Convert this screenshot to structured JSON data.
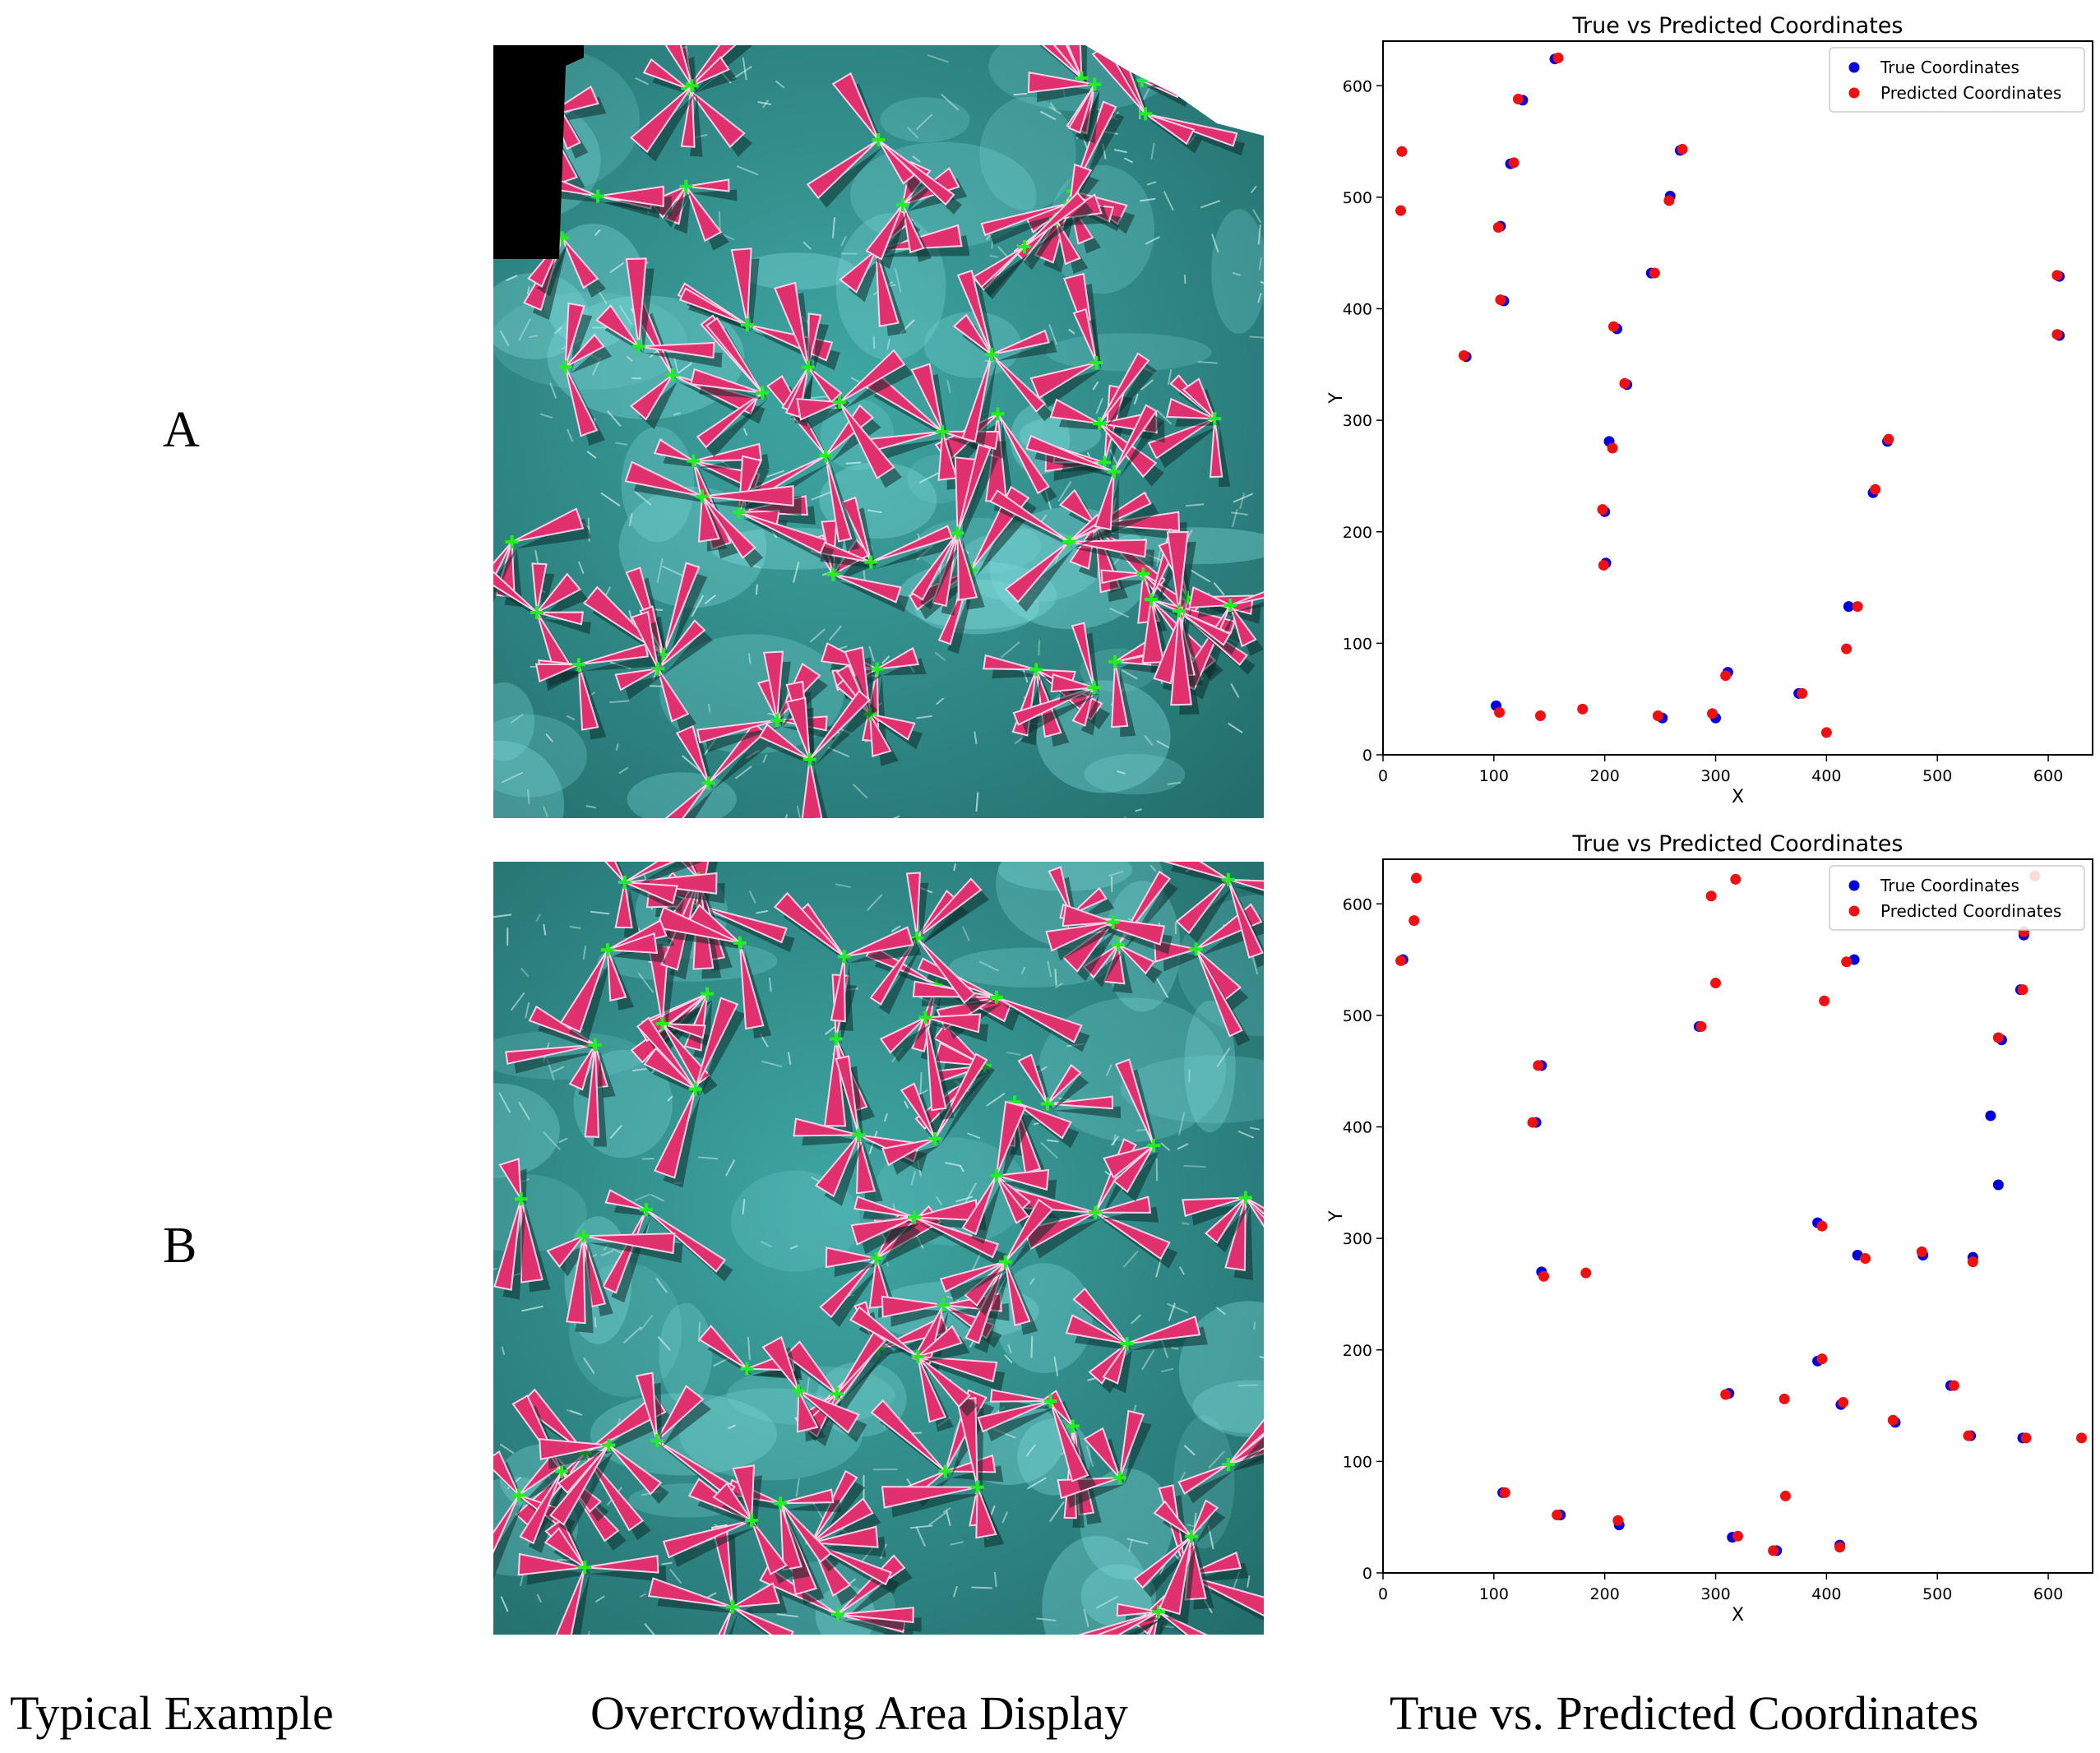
{
  "row_labels": [
    "A",
    "B"
  ],
  "captions": {
    "left": "Typical Example",
    "middle": "Overcrowding Area Display",
    "right": "True vs. Predicted Coordinates"
  },
  "colors": {
    "true": "#0000dd",
    "predicted": "#ee1111",
    "marker": "#22ee22",
    "plant_fill": "#e0306e",
    "plant_outline": "#ffd0e8",
    "soil": "#2f8f8d",
    "soil_light": "#7fdcdc",
    "mask": "#000000"
  },
  "chart_data": [
    {
      "type": "scatter",
      "title": "True vs Predicted Coordinates",
      "xlabel": "X",
      "ylabel": "Y",
      "xlim": [
        0,
        640
      ],
      "ylim": [
        0,
        640
      ],
      "xticks": [
        0,
        100,
        200,
        300,
        400,
        500,
        600
      ],
      "yticks": [
        0,
        100,
        200,
        300,
        400,
        500,
        600
      ],
      "legend": "top-right",
      "series": [
        {
          "name": "True Coordinates",
          "points": [
            [
              155,
              624
            ],
            [
              126,
              587
            ],
            [
              115,
              530
            ],
            [
              106,
              474
            ],
            [
              109,
              407
            ],
            [
              75,
              357
            ],
            [
              211,
              382
            ],
            [
              220,
              332
            ],
            [
              204,
              281
            ],
            [
              200,
              218
            ],
            [
              201,
              172
            ],
            [
              242,
              432
            ],
            [
              259,
              501
            ],
            [
              268,
              542
            ],
            [
              610,
              429
            ],
            [
              610,
              376
            ],
            [
              455,
              281
            ],
            [
              442,
              235
            ],
            [
              420,
              133
            ],
            [
              311,
              74
            ],
            [
              375,
              55
            ],
            [
              102,
              44
            ],
            [
              252,
              33
            ],
            [
              300,
              33
            ]
          ]
        },
        {
          "name": "Predicted Coordinates",
          "points": [
            [
              158,
              625
            ],
            [
              122,
              588
            ],
            [
              118,
              531
            ],
            [
              104,
              473
            ],
            [
              106,
              408
            ],
            [
              73,
              358
            ],
            [
              208,
              384
            ],
            [
              218,
              333
            ],
            [
              207,
              275
            ],
            [
              198,
              220
            ],
            [
              199,
              170
            ],
            [
              245,
              432
            ],
            [
              258,
              497
            ],
            [
              270,
              543
            ],
            [
              608,
              430
            ],
            [
              608,
              377
            ],
            [
              456,
              283
            ],
            [
              444,
              238
            ],
            [
              428,
              133
            ],
            [
              418,
              95
            ],
            [
              309,
              71
            ],
            [
              378,
              55
            ],
            [
              105,
              38
            ],
            [
              142,
              35
            ],
            [
              180,
              41
            ],
            [
              248,
              35
            ],
            [
              297,
              37
            ],
            [
              400,
              20
            ],
            [
              17,
              541
            ],
            [
              16,
              488
            ]
          ]
        }
      ]
    },
    {
      "type": "scatter",
      "title": "True vs Predicted Coordinates",
      "xlabel": "X",
      "ylabel": "Y",
      "xlim": [
        0,
        640
      ],
      "ylim": [
        0,
        640
      ],
      "xticks": [
        0,
        100,
        200,
        300,
        400,
        500,
        600
      ],
      "yticks": [
        0,
        100,
        200,
        300,
        400,
        500,
        600
      ],
      "legend": "top-right",
      "series": [
        {
          "name": "True Coordinates",
          "points": [
            [
              18,
              550
            ],
            [
              143,
              455
            ],
            [
              138,
              404
            ],
            [
              143,
              270
            ],
            [
              285,
              490
            ],
            [
              425,
              550
            ],
            [
              548,
              410
            ],
            [
              555,
              348
            ],
            [
              392,
              314
            ],
            [
              428,
              285
            ],
            [
              487,
              285
            ],
            [
              532,
              283
            ],
            [
              575,
              523
            ],
            [
              578,
              572
            ],
            [
              558,
              478
            ],
            [
              312,
              161
            ],
            [
              392,
              190
            ],
            [
              413,
              151
            ],
            [
              462,
              135
            ],
            [
              512,
              168
            ],
            [
              530,
              123
            ],
            [
              577,
              121
            ],
            [
              108,
              72
            ],
            [
              160,
              52
            ],
            [
              213,
              43
            ],
            [
              315,
              32
            ],
            [
              355,
              20
            ],
            [
              412,
              25
            ]
          ]
        },
        {
          "name": "Predicted Coordinates",
          "points": [
            [
              30,
              623
            ],
            [
              28,
              585
            ],
            [
              16,
              549
            ],
            [
              140,
              455
            ],
            [
              135,
              404
            ],
            [
              145,
              266
            ],
            [
              183,
              269
            ],
            [
              296,
              607
            ],
            [
              318,
              622
            ],
            [
              300,
              529
            ],
            [
              287,
              490
            ],
            [
              398,
              513
            ],
            [
              418,
              548
            ],
            [
              396,
              311
            ],
            [
              435,
              282
            ],
            [
              486,
              288
            ],
            [
              532,
              279
            ],
            [
              578,
              575
            ],
            [
              577,
              523
            ],
            [
              555,
              480
            ],
            [
              588,
              625
            ],
            [
              309,
              160
            ],
            [
              396,
              192
            ],
            [
              415,
              153
            ],
            [
              362,
              156
            ],
            [
              363,
              69
            ],
            [
              460,
              137
            ],
            [
              515,
              168
            ],
            [
              528,
              123
            ],
            [
              580,
              121
            ],
            [
              630,
              121
            ],
            [
              110,
              72
            ],
            [
              157,
              52
            ],
            [
              212,
              47
            ],
            [
              320,
              33
            ],
            [
              352,
              20
            ],
            [
              412,
              23
            ]
          ]
        }
      ]
    }
  ]
}
